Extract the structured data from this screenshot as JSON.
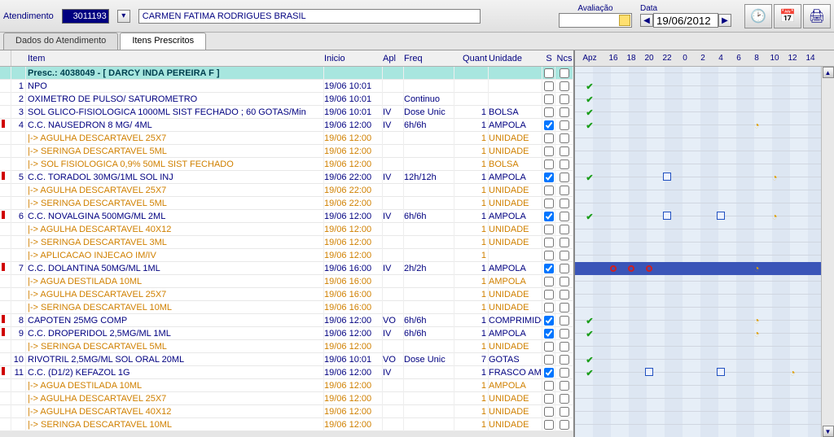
{
  "topbar": {
    "atendimento_label": "Atendimento",
    "atendimento_value": "3011193",
    "patient_name": "CARMEN FATIMA RODRIGUES BRASIL",
    "avaliacao_label": "Avaliação",
    "data_label": "Data",
    "data_value": "19/06/2012"
  },
  "tabs": {
    "t1": "Dados do Atendimento",
    "t2": "Itens Prescritos"
  },
  "headers": {
    "item": "Item",
    "inicio": "Inicio",
    "apl": "Apl",
    "freq": "Freq",
    "quant": "Quant",
    "unidade": "Unidade",
    "s": "S",
    "ncs": "Ncs",
    "apz": "Apz"
  },
  "hours": [
    "16",
    "18",
    "20",
    "22",
    "0",
    "2",
    "4",
    "6",
    "8",
    "10",
    "12",
    "14"
  ],
  "presc_header": "Presc.: 4038049 - [ DARCY INDA PEREIRA F ]",
  "rows": [
    {
      "n": "1",
      "item": "NPO",
      "inicio": "19/06 10:01",
      "apl": "",
      "freq": "",
      "q": "",
      "u": "",
      "s": false,
      "ncs": false,
      "flag": false,
      "sub": false,
      "tl": {
        "apz": "g"
      }
    },
    {
      "n": "2",
      "item": "OXIMETRO DE PULSO/ SATUROMETRO",
      "inicio": "19/06 10:01",
      "apl": "",
      "freq": "Continuo",
      "q": "",
      "u": "",
      "s": false,
      "ncs": false,
      "flag": false,
      "sub": false,
      "tl": {
        "apz": "g"
      }
    },
    {
      "n": "3",
      "item": "SOL GLICO-FISIOLOGICA 1000ML SIST FECHADO ; 60 GOTAS/Min",
      "inicio": "19/06 10:01",
      "apl": "IV",
      "freq": "Dose Unic",
      "q": "1",
      "u": "BOLSA",
      "s": false,
      "ncs": false,
      "flag": false,
      "sub": false,
      "tl": {
        "apz": "g"
      }
    },
    {
      "n": "4",
      "item": "C.C. NAUSEDRON 8 MG/ 4ML",
      "inicio": "19/06 12:00",
      "apl": "IV",
      "freq": "6h/6h",
      "q": "1",
      "u": "AMPOLA",
      "s": true,
      "ncs": false,
      "flag": true,
      "sub": false,
      "tl": {
        "apz": "g",
        "marks": [
          {
            "h": "8",
            "t": "y"
          }
        ]
      }
    },
    {
      "n": "",
      "item": "|-> AGULHA DESCARTAVEL 25X7",
      "inicio": "19/06 12:00",
      "apl": "",
      "freq": "",
      "q": "1",
      "u": "UNIDADE",
      "s": false,
      "ncs": false,
      "flag": false,
      "sub": true,
      "tl": {}
    },
    {
      "n": "",
      "item": "|-> SERINGA DESCARTAVEL 5ML",
      "inicio": "19/06 12:00",
      "apl": "",
      "freq": "",
      "q": "1",
      "u": "UNIDADE",
      "s": false,
      "ncs": false,
      "flag": false,
      "sub": true,
      "tl": {}
    },
    {
      "n": "",
      "item": "|-> SOL FISIOLOGICA 0,9% 50ML SIST FECHADO",
      "inicio": "19/06 12:00",
      "apl": "",
      "freq": "",
      "q": "1",
      "u": "BOLSA",
      "s": false,
      "ncs": false,
      "flag": false,
      "sub": true,
      "tl": {}
    },
    {
      "n": "5",
      "item": "C.C. TORADOL 30MG/1ML SOL INJ",
      "inicio": "19/06 22:00",
      "apl": "IV",
      "freq": "12h/12h",
      "q": "1",
      "u": "AMPOLA",
      "s": true,
      "ncs": false,
      "flag": true,
      "sub": false,
      "tl": {
        "apz": "g",
        "marks": [
          {
            "h": "22",
            "t": "b"
          },
          {
            "h": "10",
            "t": "y"
          }
        ]
      }
    },
    {
      "n": "",
      "item": "|-> AGULHA DESCARTAVEL 25X7",
      "inicio": "19/06 22:00",
      "apl": "",
      "freq": "",
      "q": "1",
      "u": "UNIDADE",
      "s": false,
      "ncs": false,
      "flag": false,
      "sub": true,
      "tl": {}
    },
    {
      "n": "",
      "item": "|-> SERINGA DESCARTAVEL 5ML",
      "inicio": "19/06 22:00",
      "apl": "",
      "freq": "",
      "q": "1",
      "u": "UNIDADE",
      "s": false,
      "ncs": false,
      "flag": false,
      "sub": true,
      "tl": {}
    },
    {
      "n": "6",
      "item": "C.C. NOVALGINA 500MG/ML 2ML",
      "inicio": "19/06 12:00",
      "apl": "IV",
      "freq": "6h/6h",
      "q": "1",
      "u": "AMPOLA",
      "s": true,
      "ncs": false,
      "flag": true,
      "sub": false,
      "tl": {
        "apz": "g",
        "marks": [
          {
            "h": "22",
            "t": "b"
          },
          {
            "h": "4",
            "t": "b"
          },
          {
            "h": "10",
            "t": "y"
          }
        ]
      }
    },
    {
      "n": "",
      "item": "|-> AGULHA DESCARTAVEL 40X12",
      "inicio": "19/06 12:00",
      "apl": "",
      "freq": "",
      "q": "1",
      "u": "UNIDADE",
      "s": false,
      "ncs": false,
      "flag": false,
      "sub": true,
      "tl": {}
    },
    {
      "n": "",
      "item": "|-> SERINGA DESCARTAVEL 3ML",
      "inicio": "19/06 12:00",
      "apl": "",
      "freq": "",
      "q": "1",
      "u": "UNIDADE",
      "s": false,
      "ncs": false,
      "flag": false,
      "sub": true,
      "tl": {}
    },
    {
      "n": "",
      "item": "|-> APLICACAO INJECAO IM/IV",
      "inicio": "19/06 12:00",
      "apl": "",
      "freq": "",
      "q": "1",
      "u": "",
      "s": false,
      "ncs": false,
      "flag": false,
      "sub": true,
      "tl": {}
    },
    {
      "n": "7",
      "item": "C.C. DOLANTINA 50MG/ML 1ML",
      "inicio": "19/06 16:00",
      "apl": "IV",
      "freq": "2h/2h",
      "q": "1",
      "u": "AMPOLA",
      "s": true,
      "ncs": false,
      "flag": true,
      "sub": false,
      "tl": {
        "sel": true,
        "marks": [
          {
            "h": "16",
            "t": "r"
          },
          {
            "h": "18",
            "t": "r"
          },
          {
            "h": "20",
            "t": "r"
          },
          {
            "h": "8",
            "t": "y"
          }
        ]
      }
    },
    {
      "n": "",
      "item": "|-> AGUA DESTILADA 10ML",
      "inicio": "19/06 16:00",
      "apl": "",
      "freq": "",
      "q": "1",
      "u": "AMPOLA",
      "s": false,
      "ncs": false,
      "flag": false,
      "sub": true,
      "tl": {}
    },
    {
      "n": "",
      "item": "|-> AGULHA DESCARTAVEL 25X7",
      "inicio": "19/06 16:00",
      "apl": "",
      "freq": "",
      "q": "1",
      "u": "UNIDADE",
      "s": false,
      "ncs": false,
      "flag": false,
      "sub": true,
      "tl": {}
    },
    {
      "n": "",
      "item": "|-> SERINGA DESCARTAVEL 10ML",
      "inicio": "19/06 16:00",
      "apl": "",
      "freq": "",
      "q": "1",
      "u": "UNIDADE",
      "s": false,
      "ncs": false,
      "flag": false,
      "sub": true,
      "tl": {}
    },
    {
      "n": "8",
      "item": "CAPOTEN 25MG COMP",
      "inicio": "19/06 12:00",
      "apl": "VO",
      "freq": "6h/6h",
      "q": "1",
      "u": "COMPRIMIDO",
      "s": true,
      "ncs": false,
      "flag": true,
      "sub": false,
      "tl": {
        "apz": "g",
        "marks": [
          {
            "h": "8",
            "t": "y"
          }
        ]
      }
    },
    {
      "n": "9",
      "item": "C.C. DROPERIDOL 2,5MG/ML 1ML",
      "inicio": "19/06 12:00",
      "apl": "IV",
      "freq": "6h/6h",
      "q": "1",
      "u": "AMPOLA",
      "s": true,
      "ncs": false,
      "flag": true,
      "sub": false,
      "tl": {
        "apz": "g",
        "marks": [
          {
            "h": "8",
            "t": "y"
          }
        ]
      }
    },
    {
      "n": "",
      "item": "|-> SERINGA DESCARTAVEL 5ML",
      "inicio": "19/06 12:00",
      "apl": "",
      "freq": "",
      "q": "1",
      "u": "UNIDADE",
      "s": false,
      "ncs": false,
      "flag": false,
      "sub": true,
      "tl": {}
    },
    {
      "n": "10",
      "item": "RIVOTRIL 2,5MG/ML SOL ORAL 20ML",
      "inicio": "19/06 10:01",
      "apl": "VO",
      "freq": "Dose Unic",
      "q": "7",
      "u": "GOTAS",
      "s": false,
      "ncs": false,
      "flag": false,
      "sub": false,
      "tl": {
        "apz": "g"
      }
    },
    {
      "n": "11",
      "item": "C.C. (D1/2) KEFAZOL 1G",
      "inicio": "19/06 12:00",
      "apl": "IV",
      "freq": "",
      "q": "1",
      "u": "FRASCO AM",
      "s": true,
      "ncs": false,
      "flag": true,
      "sub": false,
      "tl": {
        "apz": "g",
        "marks": [
          {
            "h": "20",
            "t": "b"
          },
          {
            "h": "4",
            "t": "b"
          },
          {
            "h": "12",
            "t": "y"
          }
        ]
      }
    },
    {
      "n": "",
      "item": "|-> AGUA DESTILADA 10ML",
      "inicio": "19/06 12:00",
      "apl": "",
      "freq": "",
      "q": "1",
      "u": "AMPOLA",
      "s": false,
      "ncs": false,
      "flag": false,
      "sub": true,
      "tl": {}
    },
    {
      "n": "",
      "item": "|-> AGULHA DESCARTAVEL 25X7",
      "inicio": "19/06 12:00",
      "apl": "",
      "freq": "",
      "q": "1",
      "u": "UNIDADE",
      "s": false,
      "ncs": false,
      "flag": false,
      "sub": true,
      "tl": {}
    },
    {
      "n": "",
      "item": "|-> AGULHA DESCARTAVEL 40X12",
      "inicio": "19/06 12:00",
      "apl": "",
      "freq": "",
      "q": "1",
      "u": "UNIDADE",
      "s": false,
      "ncs": false,
      "flag": false,
      "sub": true,
      "tl": {}
    },
    {
      "n": "",
      "item": "|-> SERINGA DESCARTAVEL 10ML",
      "inicio": "19/06 12:00",
      "apl": "",
      "freq": "",
      "q": "1",
      "u": "UNIDADE",
      "s": false,
      "ncs": false,
      "flag": false,
      "sub": true,
      "tl": {}
    }
  ]
}
